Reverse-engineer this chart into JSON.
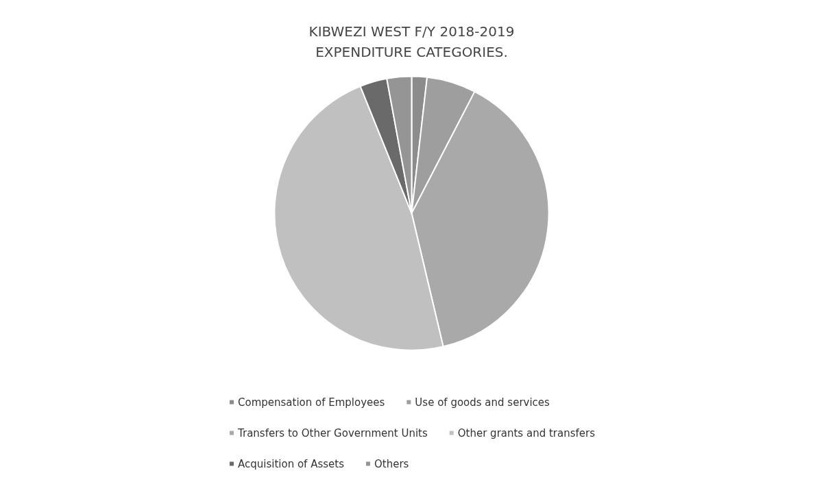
{
  "chart_data": {
    "type": "pie",
    "title": "KIBWEZI WEST F/Y 2018-2019\nEXPENDITURE CATEGORIES.",
    "categories": [
      "Compensation of Employees",
      "Use of goods and services",
      "Transfers to Other Government Units",
      "Other grants and transfers",
      "Acquisition of Assets",
      "Others"
    ],
    "values": [
      1.8,
      5.8,
      38.7,
      47.6,
      3.2,
      2.9
    ],
    "colors": [
      "#8c8c8c",
      "#9e9e9e",
      "#a9a9a9",
      "#c0c0c0",
      "#6a6a6a",
      "#959595"
    ],
    "legend": "bottom"
  }
}
